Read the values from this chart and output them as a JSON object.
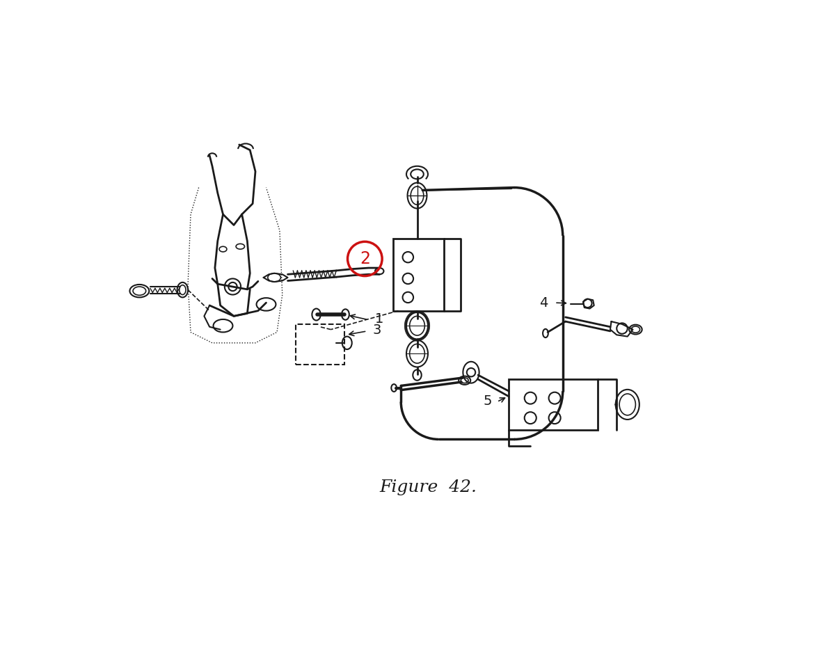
{
  "background_color": "#ffffff",
  "line_color": "#1a1a1a",
  "red_circle_color": "#cc1111",
  "fig_caption": "Figure  42.",
  "fig_width": 12.0,
  "fig_height": 9.63,
  "dpi": 100
}
